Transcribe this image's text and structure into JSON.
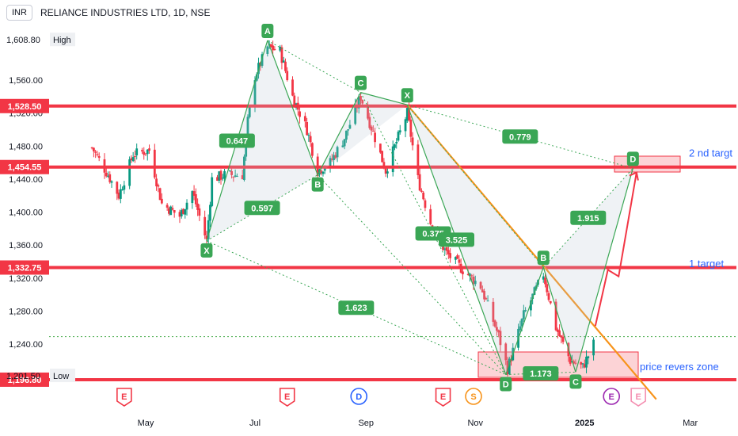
{
  "header": {
    "currency": "INR",
    "title": "RELIANCE INDUSTRIES LTD, 1D, NSE"
  },
  "colors": {
    "up": "#089981",
    "down": "#f23645",
    "level_line": "#f23645",
    "pattern_green": "#3aa655",
    "trend_orange": "#f7931a",
    "target_text": "#2962ff",
    "axis_text": "#131722"
  },
  "chart_data": {
    "type": "candlestick",
    "ylim": [
      1180,
      1625
    ],
    "y_ticks": [
      "1,560.00",
      "1,520.00",
      "1,480.00",
      "1,440.00",
      "1,400.00",
      "1,360.00",
      "1,320.00",
      "1,280.00",
      "1,240.00"
    ],
    "x_ticks": [
      "May",
      "Jul",
      "Sep",
      "Nov",
      "2025",
      "Mar"
    ],
    "price_labels": {
      "high": {
        "value": "1,608.80",
        "tag": "High"
      },
      "low": {
        "value": "1,201.50",
        "tag": "Low"
      },
      "levels": [
        "1,528.50",
        "1,454.55",
        "1,332.75",
        "1,196.80"
      ]
    },
    "annotations": {
      "target_2": "2 nd targt",
      "target_1": "1 target",
      "reversal_zone": "price revers zone"
    },
    "pattern_points": [
      {
        "label": "X",
        "date": "2024-06-04",
        "price": 1365
      },
      {
        "label": "A",
        "date": "2024-07-08",
        "price": 1608
      },
      {
        "label": "B",
        "date": "2024-08-05",
        "price": 1445
      },
      {
        "label": "C",
        "date": "2024-08-29",
        "price": 1545
      },
      {
        "label": "X",
        "date": "2024-09-24",
        "price": 1530
      },
      {
        "label": "D",
        "date": "2024-11-18",
        "price": 1203
      },
      {
        "label": "B",
        "date": "2024-12-09",
        "price": 1333
      },
      {
        "label": "C",
        "date": "2024-12-27",
        "price": 1206
      },
      {
        "label": "D",
        "date": "2025-01-28",
        "price": 1453
      }
    ],
    "ratios": [
      "0.597",
      "0.647",
      "1.623",
      "0.375",
      "3.525",
      "1.173",
      "1.915",
      "0.779"
    ],
    "event_markers": [
      "E",
      "E",
      "D",
      "E",
      "S",
      "E",
      "E"
    ]
  }
}
